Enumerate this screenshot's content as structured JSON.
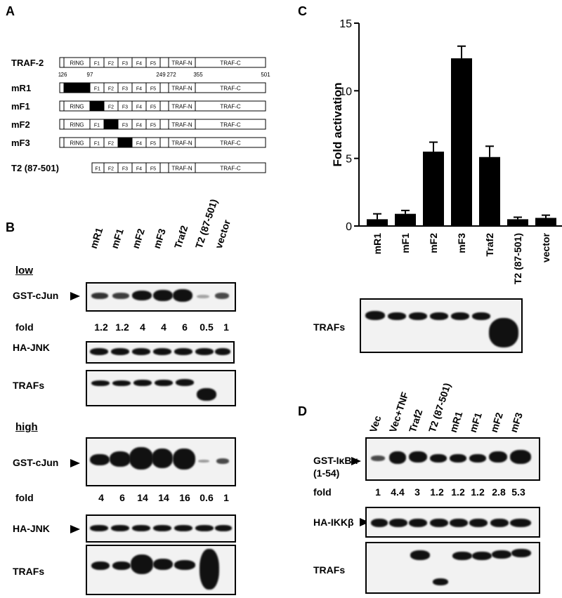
{
  "panels": {
    "A": "A",
    "B": "B",
    "C": "C",
    "D": "D"
  },
  "panelA": {
    "constructs": [
      {
        "name": "TRAF-2",
        "mut": null,
        "offset": 0
      },
      {
        "name": "mR1",
        "mut": "RING",
        "offset": 0
      },
      {
        "name": "mF1",
        "mut": "F1",
        "offset": 0
      },
      {
        "name": "mF2",
        "mut": "F2",
        "offset": 0
      },
      {
        "name": "mF3",
        "mut": "F3",
        "offset": 0
      },
      {
        "name": "T2 (87-501)",
        "mut": null,
        "offset": 1
      }
    ],
    "domains": [
      "RING",
      "F1",
      "F2",
      "F3",
      "F4",
      "F5",
      "TRAF-N",
      "TRAF-C"
    ],
    "positions": [
      "1",
      "26",
      "97",
      "249",
      "272",
      "355",
      "501"
    ]
  },
  "panelB": {
    "lanes": [
      "mR1",
      "mF1",
      "mF2",
      "mF3",
      "Traf2",
      "T2 (87-501)",
      "vector"
    ],
    "low_label": "low",
    "high_label": "high",
    "gst_cjun": "GST-cJun",
    "ha_jnk": "HA-JNK",
    "trafs": "TRAFs",
    "fold_label": "fold",
    "low_fold": [
      "1.2",
      "1.2",
      "4",
      "4",
      "6",
      "0.5",
      "1"
    ],
    "high_fold": [
      "4",
      "6",
      "14",
      "14",
      "16",
      "0.6",
      "1"
    ]
  },
  "panelC": {
    "trafs": "TRAFs",
    "lanes": [
      "mR1",
      "mF1",
      "mF2",
      "mF3",
      "Traf2",
      "T2 (87-501)",
      "vector"
    ]
  },
  "panelD": {
    "lanes": [
      "Vec",
      "Vec+TNF",
      "Traf2",
      "T2 (87-501)",
      "mR1",
      "mF1",
      "mF2",
      "mF3"
    ],
    "gst_ikba": "GST-IκBα",
    "gst_ikba_sub": "(1-54)",
    "ha_ikkb": "HA-IKKβ",
    "trafs": "TRAFs",
    "fold_label": "fold",
    "fold": [
      "1",
      "4.4",
      "3",
      "1.2",
      "1.2",
      "1.2",
      "2.8",
      "5.3"
    ]
  },
  "chart_data": {
    "type": "bar",
    "categories": [
      "mR1",
      "mF1",
      "mF2",
      "mF3",
      "Traf2",
      "T2 (87-501)",
      "vector"
    ],
    "values": [
      0.5,
      0.9,
      5.5,
      12.4,
      5.1,
      0.5,
      0.6
    ],
    "errors": [
      0.4,
      0.25,
      0.7,
      0.9,
      0.8,
      0.15,
      0.2
    ],
    "ylabel": "Fold activation",
    "ylim": [
      0,
      15
    ],
    "yticks": [
      "0",
      "5",
      "10",
      "15"
    ]
  }
}
